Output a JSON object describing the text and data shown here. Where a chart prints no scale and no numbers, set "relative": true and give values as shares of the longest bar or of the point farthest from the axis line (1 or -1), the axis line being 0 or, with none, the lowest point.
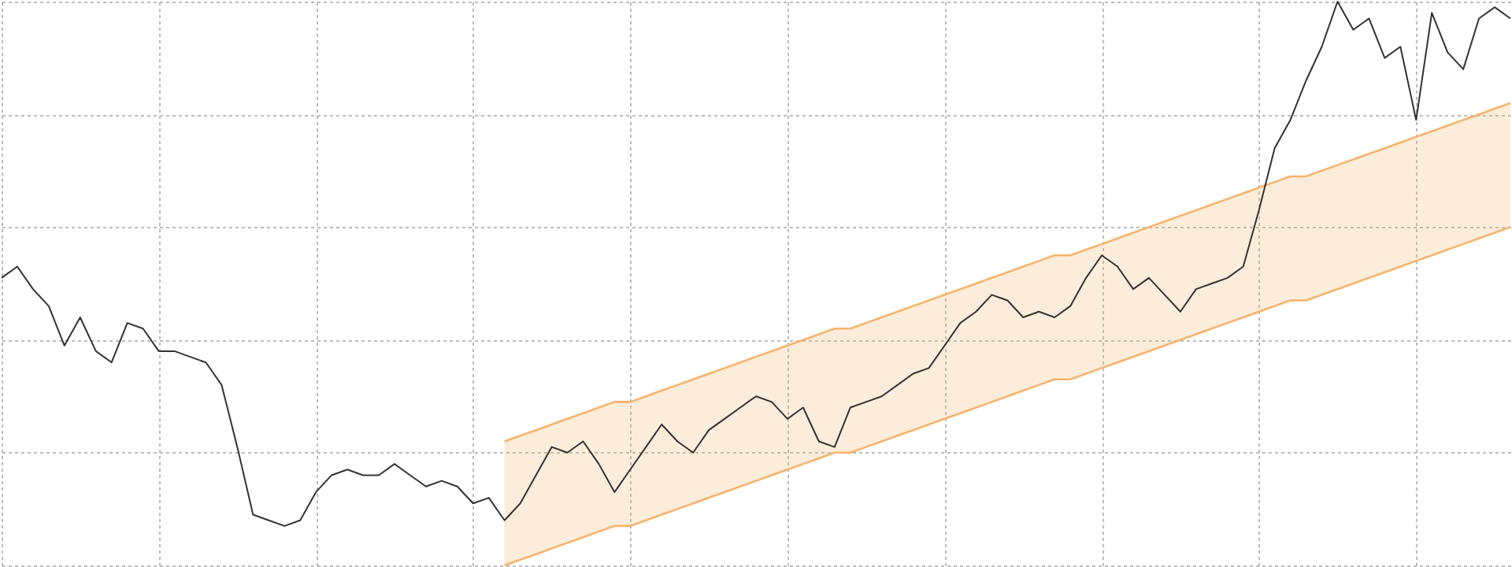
{
  "chart_data": {
    "type": "line",
    "relative": true,
    "grid": true,
    "tick_labels": false,
    "categories": [
      null,
      null,
      null,
      null,
      null,
      null,
      null,
      null,
      null,
      null,
      null,
      null,
      null,
      null,
      null,
      null,
      null,
      null,
      null,
      null,
      null,
      null,
      null,
      null,
      null,
      null,
      null,
      null,
      null,
      null,
      null,
      null,
      null,
      null,
      null,
      null,
      null,
      null,
      null,
      null,
      null,
      null,
      null,
      null,
      null,
      null,
      null,
      null,
      null,
      null,
      null,
      null,
      null,
      null,
      null,
      null,
      null,
      null,
      null,
      null,
      null,
      null,
      null,
      null,
      null,
      null,
      null,
      null,
      null,
      null,
      null,
      null,
      null,
      null,
      null,
      null,
      null,
      null,
      null,
      null,
      null,
      null,
      null,
      null,
      null,
      null,
      null,
      null,
      null,
      null,
      null,
      null,
      null,
      null,
      null,
      null,
      null
    ],
    "series": [
      {
        "color": "#333333",
        "values": [
          0.51,
          0.53,
          0.49,
          0.46,
          0.39,
          0.44,
          0.38,
          0.36,
          0.43,
          0.42,
          0.38,
          0.38,
          0.37,
          0.36,
          0.32,
          0.21,
          0.09,
          0.08,
          0.07,
          0.08,
          0.13,
          0.16,
          0.17,
          0.16,
          0.16,
          0.18,
          0.16,
          0.14,
          0.15,
          0.14,
          0.11,
          0.12,
          0.08,
          0.11,
          0.16,
          0.21,
          0.2,
          0.22,
          0.18,
          0.13,
          0.17,
          0.21,
          0.25,
          0.22,
          0.2,
          0.24,
          0.26,
          0.28,
          0.3,
          0.29,
          0.26,
          0.28,
          0.22,
          0.21,
          0.28,
          0.29,
          0.3,
          0.32,
          0.34,
          0.35,
          0.39,
          0.43,
          0.45,
          0.48,
          0.47,
          0.44,
          0.45,
          0.44,
          0.46,
          0.51,
          0.55,
          0.53,
          0.49,
          0.51,
          0.48,
          0.45,
          0.49,
          0.5,
          0.51,
          0.53,
          0.63,
          0.74,
          0.79,
          0.86,
          0.92,
          1,
          0.95,
          0.97,
          0.9,
          0.92,
          0.79,
          0.98,
          0.91,
          0.88,
          0.97,
          0.99,
          0.97
        ],
        "upper": [
          null,
          null,
          null,
          null,
          null,
          null,
          null,
          null,
          null,
          null,
          null,
          null,
          null,
          null,
          null,
          null,
          null,
          null,
          null,
          null,
          null,
          null,
          null,
          null,
          null,
          null,
          null,
          null,
          null,
          null,
          null,
          null,
          0.22,
          0.23,
          0.24,
          0.25,
          0.26,
          0.27,
          0.28,
          0.29,
          0.29,
          0.3,
          0.31,
          0.32,
          0.33,
          0.34,
          0.35,
          0.36,
          0.37,
          0.38,
          0.39,
          0.4,
          0.41,
          0.42,
          0.42,
          0.43,
          0.44,
          0.45,
          0.46,
          0.47,
          0.48,
          0.49,
          0.5,
          0.51,
          0.52,
          0.53,
          0.54,
          0.55,
          0.55,
          0.56,
          0.57,
          0.58,
          0.59,
          0.6,
          0.61,
          0.62,
          0.63,
          0.64,
          0.65,
          0.66,
          0.67,
          0.68,
          0.69,
          0.69,
          0.7,
          0.71,
          0.72,
          0.73,
          0.74,
          0.75,
          0.76,
          0.77,
          0.78,
          0.79,
          0.8,
          0.81,
          0.82
        ],
        "lower": [
          null,
          null,
          null,
          null,
          null,
          null,
          null,
          null,
          null,
          null,
          null,
          null,
          null,
          null,
          null,
          null,
          null,
          null,
          null,
          null,
          null,
          null,
          null,
          null,
          null,
          null,
          null,
          null,
          null,
          null,
          null,
          null,
          0,
          0.01,
          0.02,
          0.03,
          0.04,
          0.05,
          0.06,
          0.07,
          0.07,
          0.08,
          0.09,
          0.1,
          0.11,
          0.12,
          0.13,
          0.14,
          0.15,
          0.16,
          0.17,
          0.18,
          0.19,
          0.2,
          0.2,
          0.21,
          0.22,
          0.23,
          0.24,
          0.25,
          0.26,
          0.27,
          0.28,
          0.29,
          0.3,
          0.31,
          0.32,
          0.33,
          0.33,
          0.34,
          0.35,
          0.36,
          0.37,
          0.38,
          0.39,
          0.4,
          0.41,
          0.42,
          0.43,
          0.44,
          0.45,
          0.46,
          0.47,
          0.47,
          0.48,
          0.49,
          0.5,
          0.51,
          0.52,
          0.53,
          0.54,
          0.55,
          0.56,
          0.57,
          0.58,
          0.59,
          0.6
        ]
      },
      {
        "type": "line",
        "color": "#f5b36b",
        "values": [
          null,
          null,
          null,
          null,
          null,
          null,
          null,
          null,
          null,
          null,
          null,
          null,
          null,
          null,
          null,
          null,
          null,
          null,
          null,
          null,
          null,
          null,
          null,
          null,
          null,
          null,
          null,
          null,
          null,
          null,
          null,
          null,
          0.22,
          0.23,
          0.24,
          0.25,
          0.26,
          0.27,
          0.28,
          0.29,
          0.29,
          0.3,
          0.31,
          0.32,
          0.33,
          0.34,
          0.35,
          0.36,
          0.37,
          0.38,
          0.39,
          0.4,
          0.41,
          0.42,
          0.42,
          0.43,
          0.44,
          0.45,
          0.46,
          0.47,
          0.48,
          0.49,
          0.5,
          0.51,
          0.52,
          0.53,
          0.54,
          0.55,
          0.55,
          0.56,
          0.57,
          0.58,
          0.59,
          0.6,
          0.61,
          0.62,
          0.63,
          0.64,
          0.65,
          0.66,
          0.67,
          0.68,
          0.69,
          0.69,
          0.7,
          0.71,
          0.72,
          0.73,
          0.74,
          0.75,
          0.76,
          0.77,
          0.78,
          0.79,
          0.8,
          0.81,
          0.82
        ]
      },
      {
        "type": "line",
        "color": "#f5b36b",
        "values": [
          null,
          null,
          null,
          null,
          null,
          null,
          null,
          null,
          null,
          null,
          null,
          null,
          null,
          null,
          null,
          null,
          null,
          null,
          null,
          null,
          null,
          null,
          null,
          null,
          null,
          null,
          null,
          null,
          null,
          null,
          null,
          null,
          0,
          0.01,
          0.02,
          0.03,
          0.04,
          0.05,
          0.06,
          0.07,
          0.07,
          0.08,
          0.09,
          0.1,
          0.11,
          0.12,
          0.13,
          0.14,
          0.15,
          0.16,
          0.17,
          0.18,
          0.19,
          0.2,
          0.2,
          0.21,
          0.22,
          0.23,
          0.24,
          0.25,
          0.26,
          0.27,
          0.28,
          0.29,
          0.3,
          0.31,
          0.32,
          0.33,
          0.33,
          0.34,
          0.35,
          0.36,
          0.37,
          0.38,
          0.39,
          0.4,
          0.41,
          0.42,
          0.43,
          0.44,
          0.45,
          0.46,
          0.47,
          0.47,
          0.48,
          0.49,
          0.5,
          0.51,
          0.52,
          0.53,
          0.54,
          0.55,
          0.56,
          0.57,
          0.58,
          0.59,
          0.6
        ]
      }
    ]
  }
}
